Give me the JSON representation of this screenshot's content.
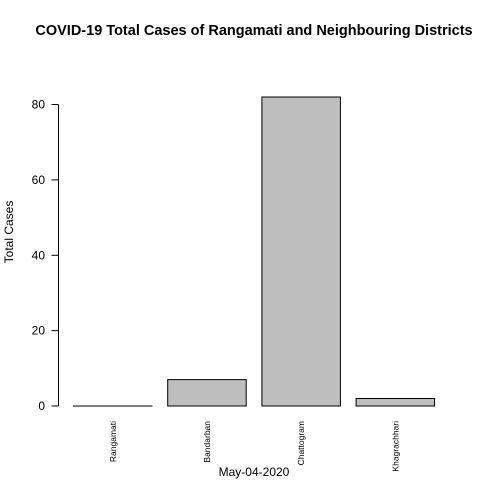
{
  "chart_data": {
    "type": "bar",
    "title": "COVID-19 Total Cases of Rangamati and Neighbouring Districts",
    "xlabel": "May-04-2020",
    "ylabel": "Total Cases",
    "categories": [
      "Rangamati",
      "Bandarban",
      "Chattogram",
      "Khagrachhari"
    ],
    "values": [
      0,
      7,
      82,
      2
    ],
    "ylim": [
      0,
      82
    ],
    "yticks": [
      0,
      20,
      40,
      60,
      80
    ],
    "grid": false,
    "bar_color": "#bebebe",
    "edge_color": "#000000"
  }
}
